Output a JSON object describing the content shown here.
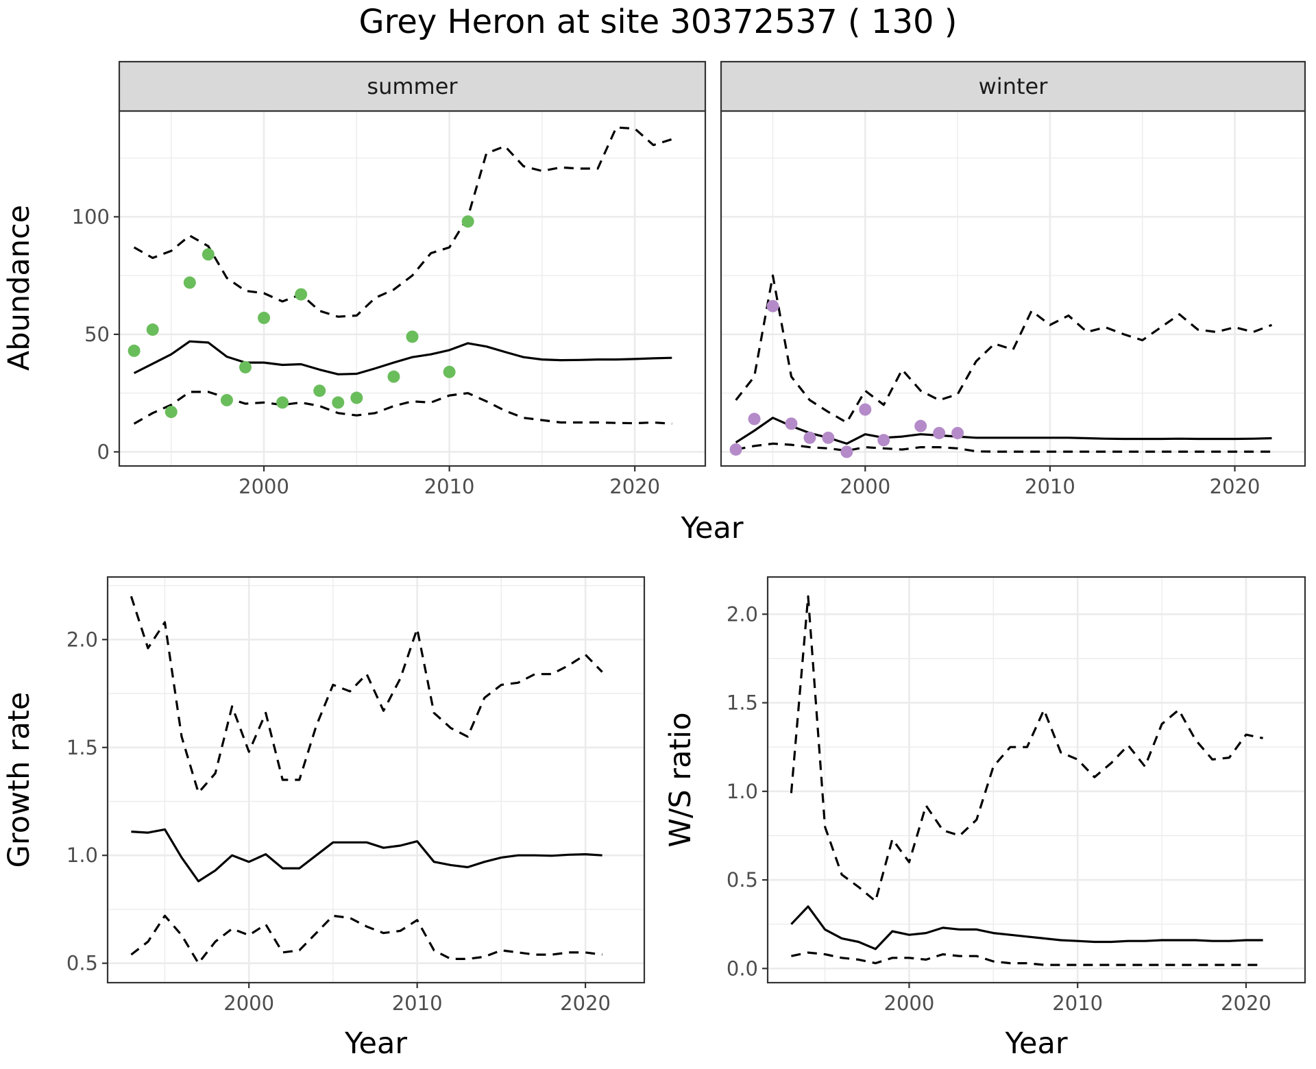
{
  "title": "Grey Heron at site 30372537 ( 130 )",
  "colors": {
    "summer_points": "#6ABD5B",
    "winter_points": "#B48BC8",
    "line": "#000000",
    "strip_fill": "#D9D9D9",
    "grid": "#EBEBEB",
    "panel_border": "#333333"
  },
  "abundance_axis_title": "Abundance",
  "shared_x_title": "Year",
  "chart_data": [
    {
      "id": "summer",
      "type": "line",
      "strip": "summer",
      "xlabel": "",
      "ylabel": "Abundance",
      "xlim": [
        1992.2,
        2023.8
      ],
      "ylim": [
        -6,
        145
      ],
      "xticks": [
        2000,
        2010,
        2020
      ],
      "yticks": [
        0,
        50,
        100
      ],
      "xtick_labels": [
        "2000",
        "2010",
        "2020"
      ],
      "ytick_labels": [
        "0",
        "50",
        "100"
      ],
      "x": [
        1993,
        1994,
        1995,
        1996,
        1997,
        1998,
        1999,
        2000,
        2001,
        2002,
        2003,
        2004,
        2005,
        2006,
        2007,
        2008,
        2009,
        2010,
        2011,
        2012,
        2013,
        2014,
        2015,
        2016,
        2017,
        2018,
        2019,
        2020,
        2021,
        2022
      ],
      "series": [
        {
          "name": "estimate",
          "style": "solid",
          "values": [
            33.5,
            37.5,
            41.5,
            47,
            46.5,
            40.5,
            38,
            38,
            37,
            37.3,
            35,
            33,
            33.2,
            35.5,
            38,
            40.3,
            41.5,
            43.3,
            46.2,
            44.8,
            42.5,
            40.3,
            39.3,
            39,
            39.1,
            39.3,
            39.3,
            39.5,
            39.8,
            40
          ]
        },
        {
          "name": "upper",
          "style": "dashed",
          "values": [
            87,
            82.5,
            85.5,
            92,
            87.5,
            74,
            68.5,
            67.5,
            64,
            67,
            60,
            57.5,
            58,
            65.5,
            69,
            75,
            84.5,
            87,
            100,
            127,
            130,
            121.5,
            119.5,
            121,
            120.5,
            120.5,
            138,
            137.5,
            130.5,
            133
          ]
        },
        {
          "name": "lower",
          "style": "dashed",
          "values": [
            12,
            16.5,
            20,
            25.5,
            25.5,
            23,
            20.5,
            21,
            20,
            21,
            19.5,
            16.5,
            15.5,
            16.5,
            19.5,
            21.5,
            21,
            24,
            25,
            21.5,
            17.5,
            14.5,
            13.5,
            12.5,
            12.5,
            12.5,
            12.3,
            12.2,
            12.5,
            12
          ]
        }
      ],
      "points": {
        "name": "observed",
        "x": [
          1993,
          1994,
          1995,
          1996,
          1997,
          1998,
          1999,
          2000,
          2001,
          2002,
          2003,
          2004,
          2005,
          2007,
          2008,
          2010,
          2011
        ],
        "values": [
          43,
          52,
          17,
          72,
          84,
          22,
          36,
          57,
          21,
          67,
          26,
          21,
          23,
          32,
          49,
          34,
          98
        ]
      }
    },
    {
      "id": "winter",
      "type": "line",
      "strip": "winter",
      "xlabel": "",
      "ylabel": "",
      "xlim": [
        1992.2,
        2023.8
      ],
      "ylim": [
        -6,
        145
      ],
      "xticks": [
        2000,
        2010,
        2020
      ],
      "yticks": [
        0,
        50,
        100
      ],
      "xtick_labels": [
        "2000",
        "2010",
        "2020"
      ],
      "ytick_labels": [],
      "x": [
        1993,
        1994,
        1995,
        1996,
        1997,
        1998,
        1999,
        2000,
        2001,
        2002,
        2003,
        2004,
        2005,
        2006,
        2007,
        2008,
        2009,
        2010,
        2011,
        2012,
        2013,
        2014,
        2015,
        2016,
        2017,
        2018,
        2019,
        2020,
        2021,
        2022
      ],
      "series": [
        {
          "name": "estimate",
          "style": "solid",
          "values": [
            4,
            9,
            14.5,
            11,
            8,
            6,
            3.5,
            7.5,
            6,
            6.5,
            7.5,
            7,
            6.5,
            6,
            6,
            6,
            6,
            6,
            6,
            5.8,
            5.6,
            5.5,
            5.5,
            5.5,
            5.6,
            5.5,
            5.5,
            5.5,
            5.6,
            5.8
          ]
        },
        {
          "name": "upper",
          "style": "dashed",
          "values": [
            22,
            32,
            75,
            32,
            22,
            17,
            12.5,
            26,
            20,
            35,
            26,
            22,
            24.5,
            38.5,
            46,
            43.5,
            60,
            54,
            58,
            51,
            53,
            50,
            47.5,
            53,
            58.5,
            52,
            51,
            53,
            51,
            54
          ]
        },
        {
          "name": "lower",
          "style": "dashed",
          "values": [
            1,
            2.5,
            3.5,
            3,
            2,
            1.5,
            0.5,
            2,
            1.5,
            1,
            2,
            2,
            1.5,
            0.2,
            0.1,
            0.1,
            0.1,
            0.1,
            0.1,
            0.1,
            0.1,
            0.1,
            0.1,
            0.1,
            0.1,
            0.1,
            0.1,
            0.1,
            0.1,
            0.1
          ]
        }
      ],
      "points": {
        "name": "observed",
        "x": [
          1993,
          1994,
          1995,
          1996,
          1997,
          1998,
          1999,
          2000,
          2001,
          2003,
          2004,
          2005
        ],
        "values": [
          1,
          14,
          62,
          12,
          6,
          6,
          0,
          18,
          5,
          11,
          8,
          8
        ]
      }
    },
    {
      "id": "growth",
      "type": "line",
      "xlabel": "Year",
      "ylabel": "Growth rate",
      "xlim": [
        1991.6,
        2023.5
      ],
      "ylim": [
        0.41,
        2.29
      ],
      "xticks": [
        2000,
        2010,
        2020
      ],
      "yticks": [
        0.5,
        1.0,
        1.5,
        2.0
      ],
      "xtick_labels": [
        "2000",
        "2010",
        "2020"
      ],
      "ytick_labels": [
        "0.5",
        "1.0",
        "1.5",
        "2.0"
      ],
      "x": [
        1993,
        1994,
        1995,
        1996,
        1997,
        1998,
        1999,
        2000,
        2001,
        2002,
        2003,
        2004,
        2005,
        2006,
        2007,
        2008,
        2009,
        2010,
        2011,
        2012,
        2013,
        2014,
        2015,
        2016,
        2017,
        2018,
        2019,
        2020,
        2021
      ],
      "series": [
        {
          "name": "estimate",
          "style": "solid",
          "values": [
            1.11,
            1.105,
            1.12,
            0.99,
            0.88,
            0.93,
            1.0,
            0.97,
            1.005,
            0.94,
            0.94,
            1.0,
            1.06,
            1.06,
            1.06,
            1.035,
            1.045,
            1.065,
            0.97,
            0.955,
            0.945,
            0.97,
            0.99,
            1.0,
            1.0,
            0.998,
            1.003,
            1.005,
            1.0
          ]
        },
        {
          "name": "upper",
          "style": "dashed",
          "values": [
            2.2,
            1.96,
            2.08,
            1.55,
            1.29,
            1.38,
            1.69,
            1.48,
            1.66,
            1.35,
            1.35,
            1.6,
            1.79,
            1.76,
            1.84,
            1.67,
            1.82,
            2.05,
            1.66,
            1.59,
            1.55,
            1.73,
            1.79,
            1.8,
            1.84,
            1.84,
            1.88,
            1.93,
            1.85
          ]
        },
        {
          "name": "lower",
          "style": "dashed",
          "values": [
            0.54,
            0.6,
            0.72,
            0.63,
            0.5,
            0.6,
            0.66,
            0.63,
            0.68,
            0.55,
            0.56,
            0.64,
            0.72,
            0.71,
            0.67,
            0.64,
            0.65,
            0.7,
            0.56,
            0.52,
            0.52,
            0.53,
            0.56,
            0.55,
            0.54,
            0.54,
            0.55,
            0.55,
            0.54
          ]
        }
      ]
    },
    {
      "id": "ratio",
      "type": "line",
      "xlabel": "Year",
      "ylabel": "W/S ratio",
      "xlim": [
        1991.6,
        2023.5
      ],
      "ylim": [
        -0.08,
        2.21
      ],
      "xticks": [
        2000,
        2010,
        2020
      ],
      "yticks": [
        0.0,
        0.5,
        1.0,
        1.5,
        2.0
      ],
      "xtick_labels": [
        "2000",
        "2010",
        "2020"
      ],
      "ytick_labels": [
        "0.0",
        "0.5",
        "1.0",
        "1.5",
        "2.0"
      ],
      "x": [
        1993,
        1994,
        1995,
        1996,
        1997,
        1998,
        1999,
        2000,
        2001,
        2002,
        2003,
        2004,
        2005,
        2006,
        2007,
        2008,
        2009,
        2010,
        2011,
        2012,
        2013,
        2014,
        2015,
        2016,
        2017,
        2018,
        2019,
        2020,
        2021
      ],
      "series": [
        {
          "name": "estimate",
          "style": "solid",
          "values": [
            0.25,
            0.35,
            0.22,
            0.17,
            0.15,
            0.11,
            0.21,
            0.19,
            0.2,
            0.23,
            0.22,
            0.22,
            0.2,
            0.19,
            0.18,
            0.17,
            0.16,
            0.155,
            0.15,
            0.15,
            0.155,
            0.155,
            0.16,
            0.16,
            0.16,
            0.155,
            0.155,
            0.16,
            0.16
          ]
        },
        {
          "name": "upper",
          "style": "dashed",
          "values": [
            0.99,
            2.1,
            0.8,
            0.53,
            0.46,
            0.38,
            0.73,
            0.6,
            0.92,
            0.78,
            0.75,
            0.84,
            1.14,
            1.25,
            1.25,
            1.46,
            1.22,
            1.18,
            1.08,
            1.16,
            1.26,
            1.14,
            1.38,
            1.46,
            1.29,
            1.18,
            1.19,
            1.32,
            1.3
          ]
        },
        {
          "name": "lower",
          "style": "dashed",
          "values": [
            0.07,
            0.09,
            0.08,
            0.06,
            0.05,
            0.03,
            0.06,
            0.06,
            0.05,
            0.08,
            0.07,
            0.07,
            0.04,
            0.03,
            0.03,
            0.02,
            0.02,
            0.02,
            0.02,
            0.02,
            0.02,
            0.02,
            0.02,
            0.02,
            0.02,
            0.02,
            0.02,
            0.02,
            0.02
          ]
        }
      ]
    }
  ]
}
